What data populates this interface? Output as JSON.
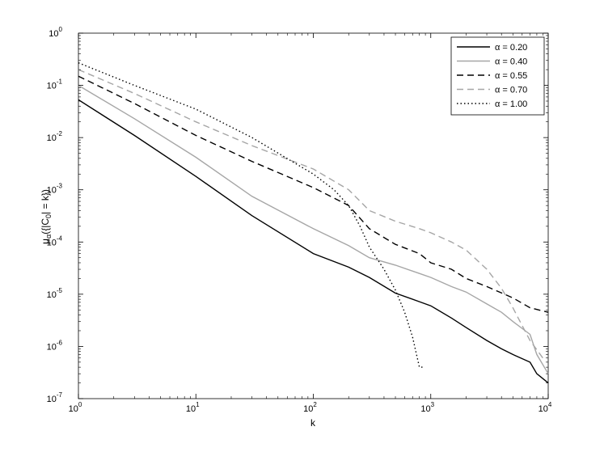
{
  "chart_data": {
    "type": "line",
    "title": "",
    "xlabel": "k",
    "ylabel": {
      "base": "μ",
      "sub1": "α",
      "mid": "({|C",
      "sub2": "0",
      "tail": "| = k})"
    },
    "xscale": "log",
    "yscale": "log",
    "xlim": [
      1,
      10000
    ],
    "ylim": [
      1e-07,
      1
    ],
    "x_ticks": [
      {
        "value": 1,
        "base": "10",
        "exp": "0"
      },
      {
        "value": 10,
        "base": "10",
        "exp": "1"
      },
      {
        "value": 100,
        "base": "10",
        "exp": "2"
      },
      {
        "value": 1000,
        "base": "10",
        "exp": "3"
      },
      {
        "value": 10000,
        "base": "10",
        "exp": "4"
      }
    ],
    "y_ticks": [
      {
        "value": 1,
        "base": "10",
        "exp": "0"
      },
      {
        "value": 0.1,
        "base": "10",
        "exp": "-1"
      },
      {
        "value": 0.01,
        "base": "10",
        "exp": "-2"
      },
      {
        "value": 0.001,
        "base": "10",
        "exp": "-3"
      },
      {
        "value": 0.0001,
        "base": "10",
        "exp": "-4"
      },
      {
        "value": 1e-05,
        "base": "10",
        "exp": "-5"
      },
      {
        "value": 1e-06,
        "base": "10",
        "exp": "-6"
      },
      {
        "value": 1e-07,
        "base": "10",
        "exp": "-7"
      }
    ],
    "grid": false,
    "legend_position": "top-right",
    "series": [
      {
        "name": "α = 0.20",
        "color": "#000000",
        "dash": "solid",
        "x": [
          1,
          3,
          10,
          30,
          100,
          200,
          300,
          500,
          800,
          1000,
          1500,
          2000,
          3000,
          4000,
          5000,
          7000,
          8000,
          10000
        ],
        "y": [
          0.053,
          0.011,
          0.0018,
          0.00032,
          6e-05,
          3.3e-05,
          2.1e-05,
          1.05e-05,
          7.2e-06,
          6e-06,
          3.5e-06,
          2.3e-06,
          1.3e-06,
          9e-07,
          7e-07,
          5e-07,
          3e-07,
          2e-07
        ]
      },
      {
        "name": "α = 0.40",
        "color": "#a6a6a6",
        "dash": "solid",
        "x": [
          1,
          3,
          10,
          30,
          100,
          200,
          300,
          500,
          800,
          1000,
          1500,
          2000,
          3000,
          4000,
          5000,
          7000,
          8000,
          10000
        ],
        "y": [
          0.1,
          0.023,
          0.0042,
          0.00075,
          0.00018,
          8.5e-05,
          5e-05,
          3.6e-05,
          2.5e-05,
          2.1e-05,
          1.4e-05,
          1.1e-05,
          6.5e-06,
          4.5e-06,
          3e-06,
          1.7e-06,
          7e-07,
          3e-07
        ]
      },
      {
        "name": "α = 0.55",
        "color": "#000000",
        "dash": "8,5",
        "x": [
          1,
          3,
          10,
          30,
          100,
          200,
          300,
          500,
          800,
          1000,
          1500,
          2000,
          3000,
          5000,
          7000,
          10000
        ],
        "y": [
          0.15,
          0.045,
          0.011,
          0.0035,
          0.0011,
          0.0005,
          0.00018,
          9e-05,
          6e-05,
          4e-05,
          3e-05,
          2e-05,
          1.4e-05,
          8.5e-06,
          5.5e-06,
          4.5e-06
        ]
      },
      {
        "name": "α = 0.70",
        "color": "#a6a6a6",
        "dash": "8,5",
        "x": [
          1,
          3,
          10,
          30,
          100,
          200,
          300,
          500,
          800,
          1000,
          1500,
          2000,
          3000,
          4000,
          5000,
          6000,
          7000,
          9000
        ],
        "y": [
          0.2,
          0.07,
          0.02,
          0.007,
          0.0025,
          0.001,
          0.0004,
          0.00025,
          0.00018,
          0.00015,
          0.0001,
          7e-05,
          3e-05,
          1.3e-05,
          5.5e-06,
          2.5e-06,
          1.3e-06,
          6e-07
        ]
      },
      {
        "name": "α = 1.00",
        "color": "#000000",
        "dash": "1.5,3",
        "x": [
          1,
          3,
          10,
          30,
          100,
          150,
          200,
          250,
          300,
          400,
          500,
          600,
          700,
          800,
          850
        ],
        "y": [
          0.27,
          0.1,
          0.035,
          0.01,
          0.002,
          0.001,
          0.0005,
          0.0002,
          8e-05,
          3e-05,
          1.2e-05,
          4.5e-06,
          1.5e-06,
          4e-07,
          4e-07
        ]
      }
    ]
  }
}
